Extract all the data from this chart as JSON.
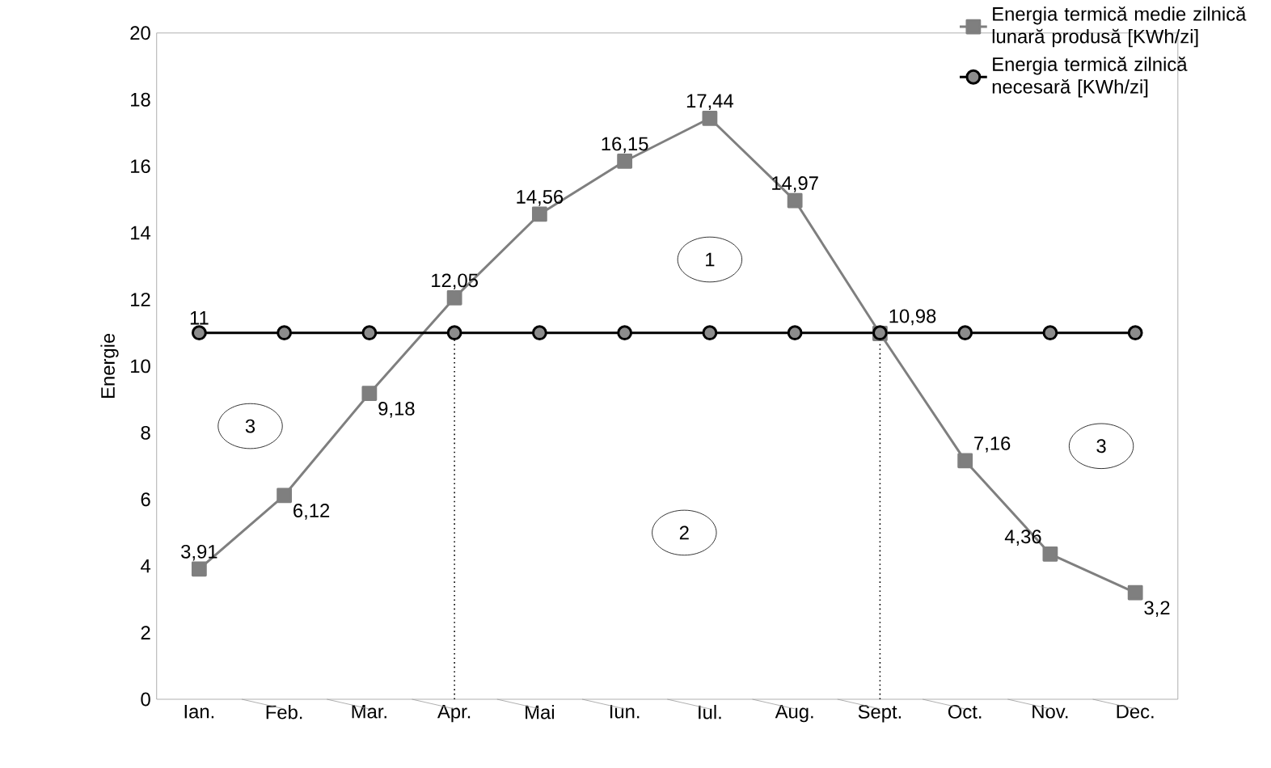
{
  "chart_data": {
    "type": "line",
    "ylabel": "Energie",
    "categories": [
      "Ian.",
      "Feb.",
      "Mar.",
      "Apr.",
      "Mai",
      "Iun.",
      "Iul.",
      "Aug.",
      "Sept.",
      "Oct.",
      "Nov.",
      "Dec."
    ],
    "series": [
      {
        "name": "Energia termică medie zilnică lunară produsă [KWh/zi]",
        "color": "#7f7f7f",
        "marker": "square",
        "values": [
          3.91,
          6.12,
          9.18,
          12.05,
          14.56,
          16.15,
          17.44,
          14.97,
          10.98,
          7.16,
          4.36,
          3.2
        ],
        "value_labels": [
          "3,91",
          "6,12",
          "9,18",
          "12,05",
          "14,56",
          "16,15",
          "17,44",
          "14,97",
          "10,98",
          "7,16",
          "4,36",
          "3,2"
        ]
      },
      {
        "name": "Energia termică zilnică necesară [KWh/zi]",
        "color": "#000000",
        "marker": "circle",
        "values": [
          11,
          11,
          11,
          11,
          11,
          11,
          11,
          11,
          11,
          11,
          11,
          11
        ],
        "value_labels": [
          "11",
          null,
          null,
          null,
          null,
          null,
          null,
          null,
          null,
          null,
          null,
          null
        ]
      }
    ],
    "ylim": [
      0,
      20
    ],
    "yticks": [
      0,
      2,
      4,
      6,
      8,
      10,
      12,
      14,
      16,
      18,
      20
    ],
    "legend": "top right",
    "line_style": "solid",
    "ref_lines": [
      {
        "axis": "x",
        "value": "Apr.",
        "line_style": "dotted"
      },
      {
        "axis": "x",
        "value": "Sept.",
        "line_style": "dotted"
      }
    ],
    "annotations": [
      "1",
      "2",
      "3",
      "3"
    ]
  }
}
